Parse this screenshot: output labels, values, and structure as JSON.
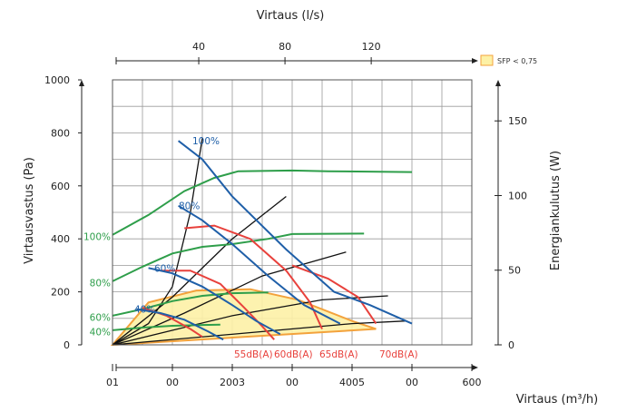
{
  "chart_data": {
    "type": "line",
    "top_axis": {
      "title": "Virtaus (l/s)",
      "ticks": [
        40,
        80,
        120
      ]
    },
    "left_axis": {
      "title": "Virtausvastus (Pa)",
      "ylim": [
        0,
        1000
      ],
      "ticks": [
        0,
        200,
        400,
        600,
        800,
        1000
      ]
    },
    "right_axis": {
      "title": "Energiankulutus (W)",
      "ticks": [
        0,
        50,
        100,
        150
      ]
    },
    "bottom_axis": {
      "title": "Virtaus (m³/h)",
      "tick_labels": [
        "01",
        "00",
        "2003",
        "00",
        "4005",
        "00",
        "600"
      ]
    },
    "legend": {
      "label": "SFP",
      "value": "< 0,75",
      "color": "#fdf1a6"
    },
    "fan_speed_labels_pressure": [
      {
        "label": "100%",
        "y": 770
      },
      {
        "label": "80%",
        "y": 525
      },
      {
        "label": "60%",
        "y": 290
      },
      {
        "label": "40%",
        "y": 135
      }
    ],
    "fan_speed_labels_power": [
      {
        "label": "100%",
        "y": 410
      },
      {
        "label": "80%",
        "y": 235
      },
      {
        "label": "60%",
        "y": 105
      },
      {
        "label": "40%",
        "y": 50
      }
    ],
    "sound_labels": [
      "55dB(A)",
      "60dB(A)",
      "65dB(A)",
      "70dB(A)"
    ],
    "colors": {
      "speed_curve": "#1f5fa8",
      "power_curve": "#2e9e4a",
      "sound_curve": "#e8413c",
      "system_curve": "#111111",
      "sfp_zone": "#fdf1a6",
      "sfp_edge": "#f3a23c"
    },
    "speed_curves": [
      {
        "name": "100%",
        "points": [
          [
            110,
            770
          ],
          [
            150,
            700
          ],
          [
            200,
            560
          ],
          [
            290,
            360
          ],
          [
            370,
            200
          ],
          [
            430,
            150
          ],
          [
            500,
            80
          ]
        ]
      },
      {
        "name": "80%",
        "points": [
          [
            110,
            525
          ],
          [
            150,
            470
          ],
          [
            200,
            380
          ],
          [
            260,
            260
          ],
          [
            320,
            150
          ],
          [
            380,
            80
          ]
        ]
      },
      {
        "name": "60%",
        "points": [
          [
            60,
            290
          ],
          [
            100,
            270
          ],
          [
            150,
            220
          ],
          [
            200,
            150
          ],
          [
            240,
            90
          ],
          [
            280,
            40
          ]
        ]
      },
      {
        "name": "40%",
        "points": [
          [
            40,
            135
          ],
          [
            80,
            120
          ],
          [
            120,
            95
          ],
          [
            160,
            50
          ],
          [
            185,
            20
          ]
        ]
      }
    ],
    "power_curves": [
      {
        "name": "100%",
        "points": [
          [
            0,
            415
          ],
          [
            60,
            490
          ],
          [
            120,
            580
          ],
          [
            170,
            630
          ],
          [
            210,
            655
          ],
          [
            300,
            658
          ],
          [
            360,
            655
          ],
          [
            500,
            652
          ]
        ]
      },
      {
        "name": "80%",
        "points": [
          [
            0,
            240
          ],
          [
            50,
            295
          ],
          [
            100,
            345
          ],
          [
            150,
            370
          ],
          [
            200,
            380
          ],
          [
            260,
            400
          ],
          [
            300,
            418
          ],
          [
            420,
            420
          ]
        ]
      },
      {
        "name": "60%",
        "points": [
          [
            0,
            110
          ],
          [
            50,
            135
          ],
          [
            100,
            165
          ],
          [
            150,
            185
          ],
          [
            200,
            195
          ],
          [
            260,
            198
          ]
        ]
      },
      {
        "name": "40%",
        "points": [
          [
            0,
            55
          ],
          [
            50,
            65
          ],
          [
            100,
            72
          ],
          [
            150,
            75
          ],
          [
            180,
            76
          ]
        ]
      }
    ],
    "sound_curves": [
      {
        "name": "55dB(A)",
        "points": [
          [
            50,
            140
          ],
          [
            90,
            110
          ],
          [
            130,
            60
          ],
          [
            150,
            30
          ]
        ]
      },
      {
        "name": "60dB(A)",
        "points": [
          [
            80,
            280
          ],
          [
            130,
            280
          ],
          [
            180,
            230
          ],
          [
            220,
            140
          ],
          [
            250,
            70
          ],
          [
            270,
            20
          ]
        ]
      },
      {
        "name": "65dB(A)",
        "points": [
          [
            120,
            440
          ],
          [
            170,
            450
          ],
          [
            230,
            400
          ],
          [
            290,
            280
          ],
          [
            330,
            160
          ],
          [
            350,
            60
          ]
        ]
      },
      {
        "name": "70dB(A)",
        "points": [
          [
            300,
            300
          ],
          [
            360,
            250
          ],
          [
            410,
            180
          ],
          [
            440,
            80
          ]
        ]
      }
    ],
    "system_curves": [
      {
        "points": [
          [
            0,
            0
          ],
          [
            60,
            80
          ],
          [
            100,
            220
          ],
          [
            130,
            500
          ],
          [
            150,
            780
          ]
        ]
      },
      {
        "points": [
          [
            0,
            0
          ],
          [
            100,
            180
          ],
          [
            200,
            400
          ],
          [
            290,
            560
          ]
        ]
      },
      {
        "points": [
          [
            0,
            0
          ],
          [
            120,
            120
          ],
          [
            250,
            260
          ],
          [
            390,
            350
          ]
        ]
      },
      {
        "points": [
          [
            0,
            0
          ],
          [
            200,
            110
          ],
          [
            350,
            170
          ],
          [
            460,
            185
          ]
        ]
      },
      {
        "points": [
          [
            0,
            0
          ],
          [
            250,
            50
          ],
          [
            400,
            80
          ],
          [
            490,
            90
          ]
        ]
      }
    ],
    "sfp_zone": [
      [
        0,
        0
      ],
      [
        60,
        160
      ],
      [
        140,
        205
      ],
      [
        230,
        210
      ],
      [
        310,
        170
      ],
      [
        400,
        90
      ],
      [
        440,
        60
      ],
      [
        0,
        0
      ]
    ]
  }
}
